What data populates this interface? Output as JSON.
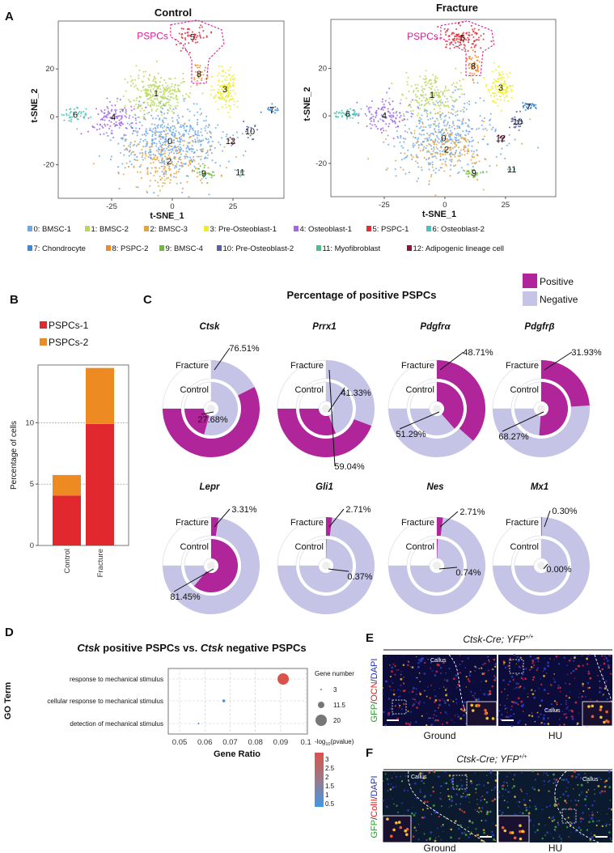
{
  "panel_labels": {
    "a": "A",
    "b": "B",
    "c": "C",
    "d": "D",
    "e": "E",
    "f": "F"
  },
  "colors": {
    "clusters": [
      "#6fa8e8",
      "#b8d85a",
      "#e8a43a",
      "#f0ee22",
      "#a065e8",
      "#e0303a",
      "#4fc1b6",
      "#3a8ad6",
      "#f08a2a",
      "#6fba3a",
      "#5a60a8",
      "#4cbf8a",
      "#8a1a3a"
    ],
    "pspc_outline": "#d6209a",
    "positive": "#b0259a",
    "negative": "#c5c3e6",
    "pspcs1": "#e0282e",
    "pspcs2": "#ee8a22",
    "dot_high": "#d9534a",
    "dot_low": "#3d8fe0"
  },
  "chart_data": [
    {
      "id": "tsne-control",
      "type": "scatter",
      "title": "Control",
      "xlabel": "t-SNE_1",
      "ylabel": "t-SNE_2",
      "xticks": [
        -25,
        0,
        25
      ],
      "yticks": [
        -20,
        0,
        20
      ],
      "xlim": [
        -47,
        46
      ],
      "ylim": [
        -34,
        40
      ],
      "annotation": "PSPCs",
      "cluster_centers": [
        [
          -1,
          -10
        ],
        [
          -6.7,
          10
        ],
        [
          -1.3,
          -18.4
        ],
        [
          21.7,
          11.6
        ],
        [
          -24.3,
          0
        ],
        [
          8.3,
          33.4
        ],
        [
          -40,
          1
        ],
        [
          41,
          3
        ],
        [
          11,
          18
        ],
        [
          13,
          -23.5
        ],
        [
          32,
          -6
        ],
        [
          28,
          -23
        ],
        [
          24,
          -10
        ]
      ]
    },
    {
      "id": "tsne-fracture",
      "type": "scatter",
      "title": "Fracture",
      "xlabel": "t-SNE_1",
      "ylabel": "t-SNE_2",
      "xticks": [
        -25,
        0,
        25
      ],
      "yticks": [
        -20,
        0,
        20
      ],
      "xlim": [
        -47,
        45.7
      ],
      "ylim": [
        -34,
        40.6
      ],
      "annotation": "PSPCs",
      "cluster_centers": [
        [
          -0.5,
          -9.3
        ],
        [
          -5.3,
          9
        ],
        [
          0.7,
          -14
        ],
        [
          23,
          12
        ],
        [
          -25,
          0.3
        ],
        [
          7.3,
          33
        ],
        [
          -40,
          1
        ],
        [
          34.5,
          4
        ],
        [
          11.7,
          21
        ],
        [
          12,
          -24
        ],
        [
          30,
          -2.4
        ],
        [
          27.6,
          -22.5
        ],
        [
          23,
          -9.3
        ]
      ]
    },
    {
      "id": "pspc-bar",
      "type": "bar",
      "stacked": true,
      "categories": [
        "Control",
        "Fracture"
      ],
      "series": [
        {
          "name": "PSPCs-1",
          "values": [
            4.07,
            9.9
          ]
        },
        {
          "name": "PSPCs-2",
          "values": [
            1.67,
            4.56
          ]
        }
      ],
      "ylabel": "Percentage of cells",
      "yticks": [
        0,
        5,
        10
      ],
      "ylim": [
        0,
        14.7
      ],
      "grid": "horizontal dashed at ticks 5, 10",
      "legend": "top"
    },
    {
      "id": "positive-pspcs",
      "type": "pie",
      "title": "Percentage of  positive PSPCs",
      "legend": [
        "Positive",
        "Negative"
      ],
      "ring_labels": [
        "Fracture",
        "Control"
      ],
      "genes": [
        {
          "name": "Ctsk",
          "fracture_label": "76.51%",
          "control_label": "27.68%",
          "fracture": 76.51,
          "control": 27.68
        },
        {
          "name": "Prrx1",
          "fracture_label": "59.04%",
          "control_label": "41.33%",
          "fracture": 59.04,
          "control": 41.33
        },
        {
          "name": "Pdgfrα",
          "fracture_label": "48.71%",
          "control_label": "51.29%",
          "fracture": 48.71,
          "control": 51.29
        },
        {
          "name": "Pdgfrβ",
          "fracture_label": "31.93%",
          "control_label": "68.27%",
          "fracture": 31.93,
          "control": 68.27
        },
        {
          "name": "Lepr",
          "fracture_label": "3.31%",
          "control_label": "81.45%",
          "fracture": 3.31,
          "control": 81.45
        },
        {
          "name": "Gli1",
          "fracture_label": "2.71%",
          "control_label": "0.37%",
          "fracture": 2.71,
          "control": 0.37
        },
        {
          "name": "Nes",
          "fracture_label": "2.71%",
          "control_label": "0.74%",
          "fracture": 2.71,
          "control": 0.74
        },
        {
          "name": "Mx1",
          "fracture_label": "0.30%",
          "control_label": "0.00%",
          "fracture": 0.3,
          "control": 0.0
        }
      ]
    },
    {
      "id": "go-dotplot",
      "type": "scatter",
      "title_parts": [
        "Ctsk",
        " positive PSPCs vs. ",
        "Ctsk",
        " negative PSPCs"
      ],
      "xlabel": "Gene Ratio",
      "ylabel": "GO Term",
      "xticks": [
        0.05,
        0.06,
        0.07,
        0.08,
        0.09,
        0.1
      ],
      "xtick_labels": [
        "0.05",
        "0.06",
        "0.07",
        "0.08",
        "0.09",
        "0.1"
      ],
      "xlim": [
        0.0455,
        0.1006
      ],
      "terms": [
        {
          "term": "response to mechanical stimulus",
          "gene_ratio": 0.091,
          "gene_number": 20,
          "neg_log10_p": 3.0
        },
        {
          "term": "cellular response to mechanical stimulus",
          "gene_ratio": 0.0675,
          "gene_number": 5,
          "neg_log10_p": 0.8
        },
        {
          "term": "detection of mechanical stimulus",
          "gene_ratio": 0.0575,
          "gene_number": 3,
          "neg_log10_p": 0.6
        }
      ],
      "size_legend_title": "Gene number",
      "size_legend": [
        3,
        11.5,
        20
      ],
      "size_legend_labels": [
        "3",
        "11.5",
        "20"
      ],
      "color_legend_title": "-log",
      "color_legend_sub": "10",
      "color_legend_tail": "(pvalue)",
      "color_legend": [
        "3",
        "2.5",
        "2",
        "1.5",
        "1",
        "0.5"
      ],
      "grid": "dashed"
    }
  ],
  "legend_a": {
    "row1": [
      "0: BMSC-1",
      "1: BMSC-2",
      "2: BMSC-3",
      "3: Pre-Osteoblast-1",
      "4: Osteoblast-1",
      "5: PSPC-1",
      "6: Osteoblast-2"
    ],
    "row2": [
      "7: Chondrocyte",
      "8: PSPC-2",
      "9: BMSC-4",
      "10: Pre-Osteoblast-2",
      "11: Myofibroblast",
      "12: Adipogenic lineage cell"
    ],
    "cluster_numbers": [
      "0",
      "1",
      "2",
      "3",
      "4",
      "5",
      "6",
      "7",
      "8",
      "9",
      "10",
      "11",
      "12"
    ]
  },
  "panel_e": {
    "title": "Ctsk-Cre; YFP",
    "superscript": "+/+",
    "stain": [
      "GFP",
      "/",
      "OCN",
      "/",
      "DAPI"
    ],
    "stain_colors": [
      "#2aa02a",
      "#222",
      "#e02020",
      "#222",
      "#2030c0"
    ],
    "callus": "Callus",
    "conditions": [
      "Ground",
      "HU"
    ]
  },
  "panel_f": {
    "title": "Ctsk-Cre; YFP",
    "superscript": "+/+",
    "stain": [
      "GFP",
      "/",
      "ColII",
      "/",
      "DAPI"
    ],
    "stain_colors": [
      "#2aa02a",
      "#222",
      "#e02020",
      "#222",
      "#2030c0"
    ],
    "callus": "Callus",
    "conditions": [
      "Ground",
      "HU"
    ]
  }
}
